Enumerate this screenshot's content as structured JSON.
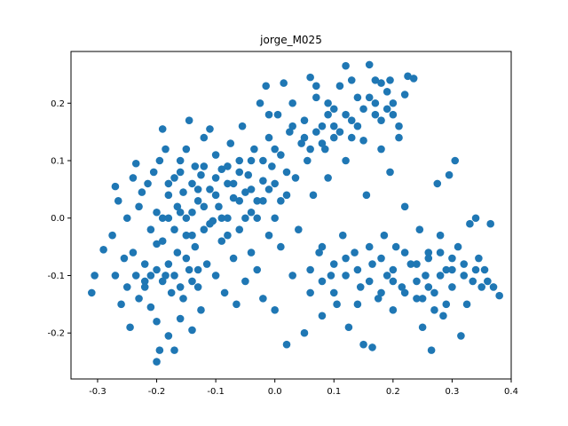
{
  "chart_data": {
    "type": "scatter",
    "title": "jorge_M025",
    "xlabel": "",
    "ylabel": "",
    "xlim": [
      -0.345,
      0.4
    ],
    "ylim": [
      -0.28,
      0.29
    ],
    "x_ticks": [
      "-0.3",
      "-0.2",
      "-0.1",
      "0.0",
      "0.1",
      "0.2",
      "0.3",
      "0.4"
    ],
    "x_tick_values": [
      -0.3,
      -0.2,
      -0.1,
      0.0,
      0.1,
      0.2,
      0.3,
      0.4
    ],
    "y_ticks": [
      "-0.2",
      "-0.1",
      "0.0",
      "0.1",
      "0.2"
    ],
    "y_tick_values": [
      -0.2,
      -0.1,
      0.0,
      0.1,
      0.2
    ],
    "grid": false,
    "marker_color": "#1f77b4",
    "series": [
      {
        "points": [
          [
            -0.31,
            -0.13
          ],
          [
            -0.305,
            -0.1
          ],
          [
            -0.29,
            -0.055
          ],
          [
            -0.275,
            -0.03
          ],
          [
            -0.27,
            -0.1
          ],
          [
            -0.27,
            0.055
          ],
          [
            -0.265,
            0.03
          ],
          [
            -0.26,
            -0.15
          ],
          [
            -0.255,
            -0.07
          ],
          [
            -0.25,
            0.0
          ],
          [
            -0.25,
            -0.12
          ],
          [
            -0.245,
            -0.19
          ],
          [
            -0.24,
            0.07
          ],
          [
            -0.24,
            -0.06
          ],
          [
            -0.235,
            0.095
          ],
          [
            -0.235,
            -0.1
          ],
          [
            -0.23,
            0.02
          ],
          [
            -0.23,
            -0.14
          ],
          [
            -0.225,
            0.045
          ],
          [
            -0.22,
            -0.08
          ],
          [
            -0.22,
            -0.11
          ],
          [
            -0.215,
            0.06
          ],
          [
            -0.21,
            -0.02
          ],
          [
            -0.21,
            -0.155
          ],
          [
            -0.205,
            0.08
          ],
          [
            -0.2,
            -0.045
          ],
          [
            -0.2,
            -0.18
          ],
          [
            -0.2,
            -0.25
          ],
          [
            -0.195,
            0.1
          ],
          [
            -0.195,
            -0.23
          ],
          [
            -0.19,
            0.155
          ],
          [
            -0.19,
            0.0
          ],
          [
            -0.185,
            -0.1
          ],
          [
            -0.185,
            0.12
          ],
          [
            -0.18,
            0.04
          ],
          [
            -0.18,
            -0.205
          ],
          [
            -0.175,
            -0.13
          ],
          [
            -0.17,
            0.07
          ],
          [
            -0.17,
            -0.23
          ],
          [
            -0.165,
            0.02
          ],
          [
            -0.165,
            -0.06
          ],
          [
            -0.16,
            0.1
          ],
          [
            -0.16,
            -0.175
          ],
          [
            -0.155,
            0.045
          ],
          [
            -0.155,
            -0.14
          ],
          [
            -0.15,
            -0.03
          ],
          [
            -0.15,
            0.12
          ],
          [
            -0.145,
            0.17
          ],
          [
            -0.145,
            -0.09
          ],
          [
            -0.14,
            0.01
          ],
          [
            -0.14,
            -0.195
          ],
          [
            -0.135,
            0.09
          ],
          [
            -0.135,
            -0.05
          ],
          [
            -0.13,
            0.03
          ],
          [
            -0.13,
            -0.12
          ],
          [
            -0.125,
            0.075
          ],
          [
            -0.125,
            -0.16
          ],
          [
            -0.12,
            -0.02
          ],
          [
            -0.12,
            0.14
          ],
          [
            -0.115,
            -0.08
          ],
          [
            -0.11,
            0.05
          ],
          [
            -0.11,
            0.155
          ],
          [
            -0.105,
            -0.005
          ],
          [
            -0.1,
            0.11
          ],
          [
            -0.1,
            -0.1
          ],
          [
            -0.095,
            0.02
          ],
          [
            -0.09,
            -0.04
          ],
          [
            -0.09,
            0.085
          ],
          [
            -0.085,
            -0.13
          ],
          [
            -0.08,
            0.06
          ],
          [
            -0.08,
            0.0
          ],
          [
            -0.075,
            0.13
          ],
          [
            -0.07,
            -0.07
          ],
          [
            -0.07,
            0.035
          ],
          [
            -0.065,
            -0.15
          ],
          [
            -0.06,
            0.1
          ],
          [
            -0.06,
            -0.02
          ],
          [
            -0.055,
            0.16
          ],
          [
            -0.05,
            0.045
          ],
          [
            -0.05,
            -0.11
          ],
          [
            -0.045,
            0.075
          ],
          [
            -0.04,
            -0.06
          ],
          [
            -0.04,
            0.01
          ],
          [
            -0.035,
            0.12
          ],
          [
            -0.03,
            -0.09
          ],
          [
            -0.03,
            0.03
          ],
          [
            -0.025,
            0.2
          ],
          [
            -0.02,
            -0.14
          ],
          [
            -0.02,
            0.065
          ],
          [
            -0.015,
            0.23
          ],
          [
            -0.01,
            -0.03
          ],
          [
            -0.01,
            0.14
          ],
          [
            -0.005,
            0.09
          ],
          [
            0.0,
            -0.16
          ],
          [
            0.0,
            0.0
          ],
          [
            0.005,
            0.18
          ],
          [
            0.01,
            0.11
          ],
          [
            0.01,
            -0.05
          ],
          [
            0.015,
            0.235
          ],
          [
            0.02,
            0.04
          ],
          [
            0.02,
            -0.22
          ],
          [
            0.025,
            0.15
          ],
          [
            0.03,
            -0.1
          ],
          [
            0.03,
            0.2
          ],
          [
            0.035,
            0.07
          ],
          [
            0.04,
            -0.02
          ],
          [
            0.045,
            0.13
          ],
          [
            0.05,
            -0.2
          ],
          [
            0.05,
            0.17
          ],
          [
            0.055,
            0.1
          ],
          [
            0.06,
            -0.13
          ],
          [
            0.06,
            0.245
          ],
          [
            0.065,
            0.04
          ],
          [
            0.07,
            0.21
          ],
          [
            0.075,
            -0.06
          ],
          [
            0.08,
            0.16
          ],
          [
            0.08,
            -0.17
          ],
          [
            0.085,
            0.12
          ],
          [
            0.09,
            0.07
          ],
          [
            0.095,
            -0.1
          ],
          [
            0.1,
            0.19
          ],
          [
            0.1,
            0.14
          ],
          [
            0.105,
            -0.15
          ],
          [
            0.11,
            0.23
          ],
          [
            0.115,
            -0.03
          ],
          [
            0.12,
            0.265
          ],
          [
            0.12,
            0.1
          ],
          [
            0.125,
            -0.19
          ],
          [
            0.13,
            0.17
          ],
          [
            0.135,
            -0.06
          ],
          [
            0.14,
            0.21
          ],
          [
            0.145,
            -0.12
          ],
          [
            0.15,
            0.135
          ],
          [
            0.15,
            -0.22
          ],
          [
            0.155,
            0.04
          ],
          [
            0.16,
            0.267
          ],
          [
            0.165,
            -0.08
          ],
          [
            0.165,
            -0.225
          ],
          [
            0.17,
            0.18
          ],
          [
            0.175,
            -0.14
          ],
          [
            0.18,
            0.12
          ],
          [
            0.185,
            -0.03
          ],
          [
            0.19,
            0.22
          ],
          [
            0.19,
            -0.1
          ],
          [
            0.195,
            0.08
          ],
          [
            0.2,
            -0.16
          ],
          [
            0.205,
            -0.05
          ],
          [
            0.21,
            0.14
          ],
          [
            0.215,
            -0.12
          ],
          [
            0.22,
            0.02
          ],
          [
            0.225,
            0.247
          ],
          [
            0.23,
            -0.08
          ],
          [
            0.235,
            0.243
          ],
          [
            0.24,
            -0.14
          ],
          [
            0.245,
            -0.02
          ],
          [
            0.25,
            -0.19
          ],
          [
            0.255,
            -0.1
          ],
          [
            0.26,
            -0.06
          ],
          [
            0.265,
            -0.23
          ],
          [
            0.27,
            -0.13
          ],
          [
            0.275,
            0.06
          ],
          [
            0.28,
            -0.03
          ],
          [
            0.285,
            -0.17
          ],
          [
            0.29,
            -0.09
          ],
          [
            0.295,
            0.075
          ],
          [
            0.3,
            -0.12
          ],
          [
            0.305,
            0.1
          ],
          [
            0.31,
            -0.05
          ],
          [
            0.315,
            -0.205
          ],
          [
            0.32,
            -0.08
          ],
          [
            0.325,
            -0.15
          ],
          [
            0.33,
            -0.01
          ],
          [
            0.335,
            -0.11
          ],
          [
            0.34,
            0.0
          ],
          [
            0.345,
            -0.07
          ],
          [
            0.35,
            -0.12
          ],
          [
            0.355,
            -0.09
          ],
          [
            0.36,
            -0.11
          ],
          [
            0.365,
            -0.01
          ],
          [
            0.37,
            -0.12
          ],
          [
            0.38,
            -0.135
          ],
          [
            -0.2,
            0.01
          ],
          [
            -0.19,
            -0.04
          ],
          [
            -0.18,
            0.0
          ],
          [
            -0.17,
            -0.02
          ],
          [
            -0.16,
            0.01
          ],
          [
            -0.15,
            0.0
          ],
          [
            -0.14,
            -0.03
          ],
          [
            -0.13,
            0.05
          ],
          [
            -0.12,
            0.02
          ],
          [
            -0.11,
            -0.01
          ],
          [
            -0.1,
            0.04
          ],
          [
            -0.09,
            0.0
          ],
          [
            -0.08,
            -0.03
          ],
          [
            -0.07,
            0.06
          ],
          [
            -0.06,
            0.03
          ],
          [
            -0.05,
            0.0
          ],
          [
            -0.04,
            0.05
          ],
          [
            -0.03,
            0.0
          ],
          [
            -0.02,
            0.03
          ],
          [
            -0.01,
            0.05
          ],
          [
            0.0,
            0.06
          ],
          [
            0.01,
            0.03
          ],
          [
            0.02,
            0.08
          ],
          [
            -0.22,
            -0.12
          ],
          [
            -0.21,
            -0.1
          ],
          [
            -0.2,
            -0.09
          ],
          [
            -0.19,
            -0.11
          ],
          [
            -0.18,
            -0.08
          ],
          [
            -0.17,
            -0.1
          ],
          [
            -0.16,
            -0.12
          ],
          [
            -0.15,
            -0.07
          ],
          [
            -0.14,
            -0.11
          ],
          [
            -0.13,
            -0.09
          ],
          [
            0.05,
            0.14
          ],
          [
            0.06,
            0.12
          ],
          [
            0.07,
            0.15
          ],
          [
            0.08,
            0.13
          ],
          [
            0.09,
            0.18
          ],
          [
            0.1,
            0.16
          ],
          [
            0.11,
            0.15
          ],
          [
            0.12,
            0.18
          ],
          [
            0.13,
            0.14
          ],
          [
            0.14,
            0.16
          ],
          [
            0.15,
            0.19
          ],
          [
            0.16,
            0.21
          ],
          [
            0.17,
            0.2
          ],
          [
            0.18,
            0.17
          ],
          [
            0.19,
            0.19
          ],
          [
            0.2,
            0.18
          ],
          [
            0.21,
            0.16
          ],
          [
            0.06,
            -0.09
          ],
          [
            0.08,
            -0.11
          ],
          [
            0.1,
            -0.08
          ],
          [
            0.12,
            -0.1
          ],
          [
            0.14,
            -0.09
          ],
          [
            0.16,
            -0.11
          ],
          [
            0.18,
            -0.07
          ],
          [
            0.2,
            -0.09
          ],
          [
            0.22,
            -0.06
          ],
          [
            0.24,
            -0.08
          ],
          [
            0.26,
            -0.07
          ],
          [
            0.28,
            -0.06
          ],
          [
            0.3,
            -0.07
          ],
          [
            0.32,
            -0.1
          ],
          [
            0.34,
            -0.09
          ],
          [
            0.08,
            -0.05
          ],
          [
            0.1,
            -0.13
          ],
          [
            0.12,
            -0.07
          ],
          [
            0.14,
            -0.15
          ],
          [
            0.16,
            -0.05
          ],
          [
            0.18,
            -0.13
          ],
          [
            0.2,
            -0.11
          ],
          [
            0.22,
            -0.13
          ],
          [
            0.24,
            -0.11
          ],
          [
            0.26,
            -0.12
          ],
          [
            0.28,
            -0.1
          ],
          [
            0.3,
            -0.09
          ],
          [
            0.29,
            -0.15
          ],
          [
            0.27,
            -0.16
          ],
          [
            0.25,
            -0.14
          ],
          [
            -0.18,
            0.06
          ],
          [
            -0.16,
            0.08
          ],
          [
            -0.14,
            0.06
          ],
          [
            -0.12,
            0.09
          ],
          [
            -0.1,
            0.07
          ],
          [
            -0.08,
            0.09
          ],
          [
            -0.06,
            0.08
          ],
          [
            -0.04,
            0.1
          ],
          [
            -0.02,
            0.1
          ],
          [
            0.0,
            0.12
          ],
          [
            0.13,
            0.24
          ],
          [
            0.09,
            0.2
          ],
          [
            0.07,
            0.23
          ],
          [
            0.03,
            0.16
          ],
          [
            -0.01,
            0.18
          ],
          [
            0.18,
            0.235
          ],
          [
            0.195,
            0.24
          ],
          [
            0.2,
            0.2
          ],
          [
            0.22,
            0.215
          ],
          [
            0.17,
            0.24
          ]
        ]
      }
    ]
  }
}
